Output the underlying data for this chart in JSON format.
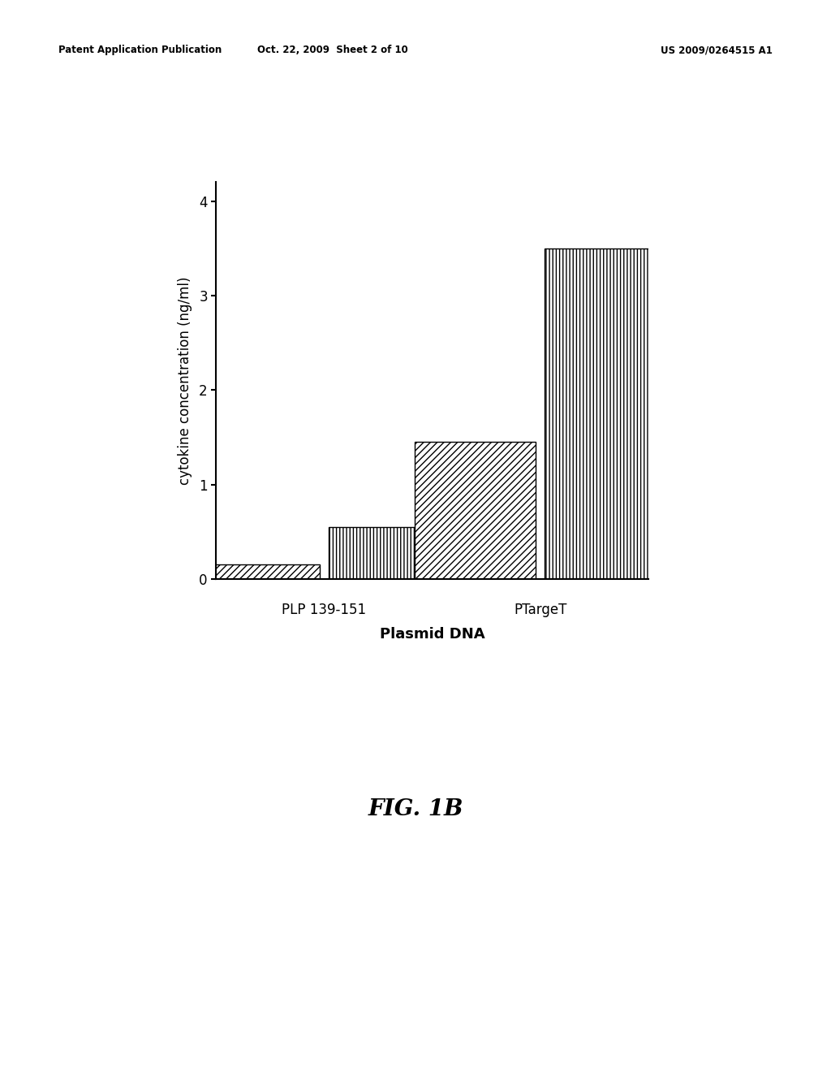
{
  "groups": [
    "PLP 139-151",
    "PTargeT"
  ],
  "bar1_values": [
    0.15,
    1.45
  ],
  "bar2_values": [
    0.55,
    3.5
  ],
  "bar1_hatch": "////",
  "bar2_hatch": "||||",
  "bar_edgecolor": "#000000",
  "bar_width": 0.28,
  "ylim": [
    0,
    4.2
  ],
  "yticks": [
    0,
    1,
    2,
    3,
    4
  ],
  "ylabel": "cytokine concentration (ng/ml)",
  "xlabel": "Plasmid DNA",
  "figure_label": "FIG. 1B",
  "background_color": "#ffffff",
  "header_left": "Patent Application Publication",
  "header_center": "Oct. 22, 2009  Sheet 2 of 10",
  "header_right": "US 2009/0264515 A1",
  "ylabel_fontsize": 12,
  "xlabel_fontsize": 13,
  "tick_fontsize": 12,
  "group_label_fontsize": 12,
  "fig_label_fontsize": 20,
  "header_fontsize": 8.5
}
